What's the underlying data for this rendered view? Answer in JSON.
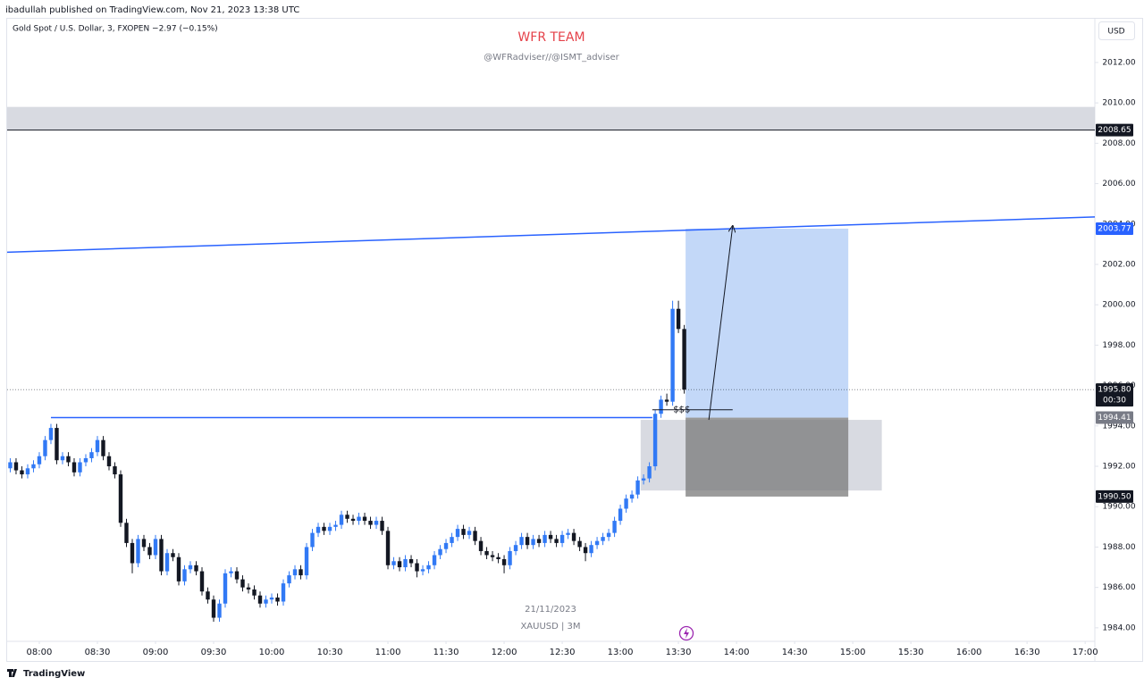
{
  "header": {
    "publisher": "ibadullah published on TradingView.com, Nov 21, 2023 13:38 UTC",
    "symbol": "Gold Spot / U.S. Dollar, 3, FXOPEN  −2.97 (−0.15%)"
  },
  "footer": {
    "brand": "TradingView"
  },
  "chart_data": {
    "type": "candlestick",
    "title": "WFR TEAM",
    "subtitle": "@WFRadviser//@ISMT_adviser",
    "watermark_date": "21/11/2023",
    "watermark_symbol": "XAUUSD | 3M",
    "currency": "USD",
    "up_color": "#3179f5",
    "down_color": "#131722",
    "grid": false,
    "x": [
      465,
      468,
      471,
      474,
      477,
      480,
      483,
      486,
      489,
      492,
      495,
      498,
      501,
      504,
      507,
      510,
      513,
      516,
      519,
      522,
      525,
      528,
      531,
      534,
      537,
      540,
      543,
      546,
      549,
      552,
      555,
      558,
      561,
      564,
      567,
      570,
      573,
      576,
      579,
      582,
      585,
      588,
      591,
      594,
      597,
      600,
      603,
      606,
      609,
      612,
      615,
      618,
      621,
      624,
      627,
      630,
      633,
      636,
      639,
      642,
      645,
      648,
      651,
      654,
      657,
      660,
      663,
      666,
      669,
      672,
      675,
      678,
      681,
      684,
      687,
      690,
      693,
      696,
      699,
      702,
      705,
      708,
      711,
      714,
      717,
      720,
      723,
      726,
      729,
      732,
      735,
      738,
      741,
      744,
      747,
      750,
      753,
      756,
      759,
      762,
      765,
      768,
      771,
      774,
      777,
      780,
      783,
      786,
      789,
      792,
      795,
      798,
      801,
      804,
      807,
      810,
      813
    ],
    "open": [
      1991.9,
      1992.2,
      1991.8,
      1991.6,
      1991.9,
      1992.1,
      1992.5,
      1993.3,
      1993.9,
      1992.3,
      1992.5,
      1992.2,
      1991.7,
      1992.2,
      1992.4,
      1992.7,
      1993.3,
      1992.5,
      1992.0,
      1991.6,
      1989.2,
      1988.2,
      1987.2,
      1988.4,
      1988.0,
      1987.6,
      1988.4,
      1986.8,
      1987.7,
      1987.5,
      1986.3,
      1986.9,
      1987.1,
      1986.8,
      1985.8,
      1985.4,
      1984.5,
      1985.2,
      1986.7,
      1986.8,
      1986.4,
      1986.0,
      1985.9,
      1985.6,
      1985.2,
      1985.4,
      1985.5,
      1985.3,
      1986.2,
      1986.6,
      1986.9,
      1986.6,
      1988.0,
      1988.7,
      1989.0,
      1988.8,
      1989.0,
      1989.1,
      1989.6,
      1989.4,
      1989.3,
      1989.5,
      1989.3,
      1989.1,
      1989.3,
      1988.8,
      1987.1,
      1987.3,
      1987.0,
      1987.4,
      1987.2,
      1986.8,
      1986.9,
      1987.1,
      1987.6,
      1987.9,
      1988.2,
      1988.5,
      1988.9,
      1988.6,
      1988.8,
      1988.3,
      1987.8,
      1987.6,
      1987.5,
      1987.4,
      1987.1,
      1987.8,
      1988.1,
      1988.5,
      1988.1,
      1988.4,
      1988.2,
      1988.6,
      1988.4,
      1988.2,
      1988.6,
      1988.7,
      1988.3,
      1988.0,
      1987.7,
      1988.1,
      1988.3,
      1988.5,
      1988.7,
      1989.3,
      1989.9,
      1990.4,
      1990.6,
      1991.3,
      1991.4,
      1992.0,
      1994.6,
      1995.3,
      1995.2,
      1999.8,
      1998.8
    ],
    "high": [
      1992.4,
      1992.4,
      1992.0,
      1992.1,
      1992.3,
      1992.7,
      1993.5,
      1994.1,
      1994.1,
      1992.7,
      1992.7,
      1992.4,
      1992.4,
      1992.6,
      1992.9,
      1993.5,
      1993.5,
      1992.7,
      1992.2,
      1991.8,
      1989.4,
      1988.4,
      1988.6,
      1988.6,
      1988.2,
      1988.6,
      1988.6,
      1987.9,
      1987.9,
      1987.7,
      1987.1,
      1987.3,
      1987.3,
      1987.0,
      1986.0,
      1985.6,
      1985.4,
      1986.9,
      1987.0,
      1987.0,
      1986.6,
      1986.2,
      1986.1,
      1985.8,
      1985.6,
      1985.7,
      1985.7,
      1986.4,
      1986.8,
      1987.1,
      1987.1,
      1988.2,
      1988.9,
      1989.2,
      1989.2,
      1989.2,
      1989.3,
      1989.8,
      1989.8,
      1989.6,
      1989.7,
      1989.7,
      1989.5,
      1989.5,
      1989.5,
      1989.0,
      1987.5,
      1987.5,
      1987.6,
      1987.6,
      1987.4,
      1987.1,
      1987.3,
      1987.8,
      1988.1,
      1988.4,
      1988.7,
      1989.1,
      1989.1,
      1989.0,
      1989.0,
      1988.5,
      1988.0,
      1987.8,
      1987.7,
      1987.6,
      1988.0,
      1988.3,
      1988.7,
      1988.7,
      1988.6,
      1988.6,
      1988.8,
      1988.8,
      1988.6,
      1988.8,
      1988.9,
      1988.9,
      1988.5,
      1988.2,
      1988.3,
      1988.5,
      1988.7,
      1988.9,
      1989.5,
      1990.1,
      1990.6,
      1990.8,
      1991.5,
      1991.6,
      1992.2,
      1994.8,
      1995.5,
      1995.6,
      2000.2,
      2000.2,
      1999.0
    ],
    "low": [
      1991.7,
      1991.6,
      1991.4,
      1991.4,
      1991.7,
      1991.9,
      1992.3,
      1993.1,
      1992.1,
      1992.1,
      1992.0,
      1991.5,
      1991.5,
      1992.0,
      1992.2,
      1992.5,
      1992.3,
      1991.8,
      1991.4,
      1989.0,
      1988.0,
      1986.7,
      1987.0,
      1987.8,
      1987.4,
      1987.4,
      1986.6,
      1986.6,
      1987.3,
      1986.1,
      1986.1,
      1986.7,
      1986.6,
      1985.6,
      1985.2,
      1984.3,
      1984.3,
      1985.0,
      1986.5,
      1986.2,
      1985.8,
      1985.7,
      1985.4,
      1985.0,
      1985.0,
      1985.2,
      1985.1,
      1985.1,
      1986.0,
      1986.4,
      1986.4,
      1986.4,
      1987.8,
      1988.5,
      1988.6,
      1988.6,
      1988.8,
      1988.9,
      1989.2,
      1989.1,
      1989.1,
      1989.1,
      1988.9,
      1988.9,
      1988.6,
      1986.9,
      1986.9,
      1986.8,
      1986.8,
      1987.0,
      1986.5,
      1986.6,
      1986.7,
      1986.9,
      1987.4,
      1987.7,
      1988.0,
      1988.3,
      1988.4,
      1988.4,
      1988.1,
      1987.6,
      1987.4,
      1987.3,
      1987.2,
      1986.7,
      1986.9,
      1987.6,
      1987.9,
      1987.9,
      1987.9,
      1988.0,
      1988.0,
      1988.2,
      1988.0,
      1988.0,
      1988.4,
      1988.1,
      1987.8,
      1987.3,
      1987.5,
      1987.9,
      1988.1,
      1988.3,
      1988.5,
      1989.1,
      1989.7,
      1990.2,
      1990.4,
      1991.1,
      1991.2,
      1991.8,
      1994.4,
      1995.0,
      1995.0,
      1998.6,
      1995.6
    ],
    "close": [
      1992.2,
      1991.8,
      1991.6,
      1991.9,
      1992.1,
      1992.5,
      1993.3,
      1993.9,
      1992.3,
      1992.5,
      1992.2,
      1991.7,
      1992.2,
      1992.4,
      1992.7,
      1993.3,
      1992.5,
      1992.0,
      1991.6,
      1989.2,
      1988.2,
      1987.2,
      1988.4,
      1988.0,
      1987.6,
      1988.4,
      1986.8,
      1987.7,
      1987.5,
      1986.3,
      1986.9,
      1987.1,
      1986.8,
      1985.8,
      1985.4,
      1984.5,
      1985.2,
      1986.7,
      1986.8,
      1986.4,
      1986.0,
      1985.9,
      1985.6,
      1985.2,
      1985.4,
      1985.5,
      1985.3,
      1986.2,
      1986.6,
      1986.9,
      1986.6,
      1988.0,
      1988.7,
      1989.0,
      1988.8,
      1989.0,
      1989.1,
      1989.6,
      1989.4,
      1989.3,
      1989.5,
      1989.3,
      1989.1,
      1989.3,
      1988.8,
      1987.1,
      1987.3,
      1987.0,
      1987.4,
      1987.2,
      1986.8,
      1986.9,
      1987.1,
      1987.6,
      1987.9,
      1988.2,
      1988.5,
      1988.9,
      1988.6,
      1988.8,
      1988.3,
      1987.8,
      1987.6,
      1987.5,
      1987.4,
      1987.1,
      1987.8,
      1988.1,
      1988.5,
      1988.1,
      1988.4,
      1988.2,
      1988.6,
      1988.4,
      1988.2,
      1988.6,
      1988.7,
      1988.3,
      1988.0,
      1987.7,
      1988.1,
      1988.3,
      1988.5,
      1988.7,
      1989.3,
      1989.9,
      1990.4,
      1990.6,
      1991.3,
      1991.4,
      1992.0,
      1994.6,
      1995.3,
      1995.2,
      1999.8,
      1998.8,
      1995.8
    ],
    "xlim": [
      463.4,
      1025
    ],
    "ylim": [
      1983.33,
      2014.21
    ],
    "xticks": [
      {
        "value": 480,
        "label": "08:00"
      },
      {
        "value": 510,
        "label": "08:30"
      },
      {
        "value": 540,
        "label": "09:00"
      },
      {
        "value": 570,
        "label": "09:30"
      },
      {
        "value": 600,
        "label": "10:00"
      },
      {
        "value": 630,
        "label": "10:30"
      },
      {
        "value": 660,
        "label": "11:00"
      },
      {
        "value": 690,
        "label": "11:30"
      },
      {
        "value": 720,
        "label": "12:00"
      },
      {
        "value": 750,
        "label": "12:30"
      },
      {
        "value": 780,
        "label": "13:00"
      },
      {
        "value": 810,
        "label": "13:30"
      },
      {
        "value": 840,
        "label": "14:00"
      },
      {
        "value": 870,
        "label": "14:30"
      },
      {
        "value": 900,
        "label": "15:00"
      },
      {
        "value": 930,
        "label": "15:30"
      },
      {
        "value": 960,
        "label": "16:00"
      },
      {
        "value": 990,
        "label": "16:30"
      },
      {
        "value": 1020,
        "label": "17:00"
      }
    ],
    "yticks": [
      {
        "value": 1984,
        "label": "1984.00"
      },
      {
        "value": 1986,
        "label": "1986.00"
      },
      {
        "value": 1988,
        "label": "1988.00"
      },
      {
        "value": 1990,
        "label": "1990.00"
      },
      {
        "value": 1992,
        "label": "1992.00"
      },
      {
        "value": 1994,
        "label": "1994.00"
      },
      {
        "value": 1996,
        "label": "1996.00"
      },
      {
        "value": 1998,
        "label": "1998.00"
      },
      {
        "value": 2000,
        "label": "2000.00"
      },
      {
        "value": 2002,
        "label": "2002.00"
      },
      {
        "value": 2004,
        "label": "2004.00"
      },
      {
        "value": 2006,
        "label": "2006.00"
      },
      {
        "value": 2008,
        "label": "2008.00"
      },
      {
        "value": 2010,
        "label": "2010.00"
      },
      {
        "value": 2012,
        "label": "2012.00"
      }
    ],
    "price_labels": [
      {
        "value": 2008.65,
        "label": "2008.65",
        "color": "#131722"
      },
      {
        "value": 2003.77,
        "label": "2003.77",
        "color": "#2962ff"
      },
      {
        "value": 1995.8,
        "label": "1995.80",
        "color": "#131722"
      },
      {
        "value": 1994.41,
        "label": "1994.41",
        "color": "#787b86"
      },
      {
        "value": 1990.5,
        "label": "1990.50",
        "color": "#131722"
      }
    ],
    "countdown": "00:30",
    "zones": [
      {
        "x": [
          463.4,
          1025
        ],
        "y": [
          2008.65,
          2009.8
        ],
        "color": "#d1d4dc"
      },
      {
        "x": [
          790.5,
          915
        ],
        "y": [
          1990.8,
          1994.3
        ],
        "color": "#d1d4dc"
      }
    ],
    "position": {
      "x": [
        813.7,
        897.7
      ],
      "profit_color": "#a9c8f5",
      "loss_color": "#7a7a7a"
    },
    "support_line": {
      "x": [
        486,
        796.5
      ],
      "color": "#2962ff"
    },
    "trendline": {
      "x": [
        463.4,
        1025
      ],
      "y": [
        2002.6,
        2004.35
      ],
      "color": "#2962ff"
    },
    "arrow": {
      "x": [
        825.7,
        838
      ],
      "y": [
        1994.3,
        2003.9
      ]
    },
    "sss": {
      "text": "$$$",
      "x": [
        796.5,
        838
      ],
      "y": 1994.8
    }
  }
}
